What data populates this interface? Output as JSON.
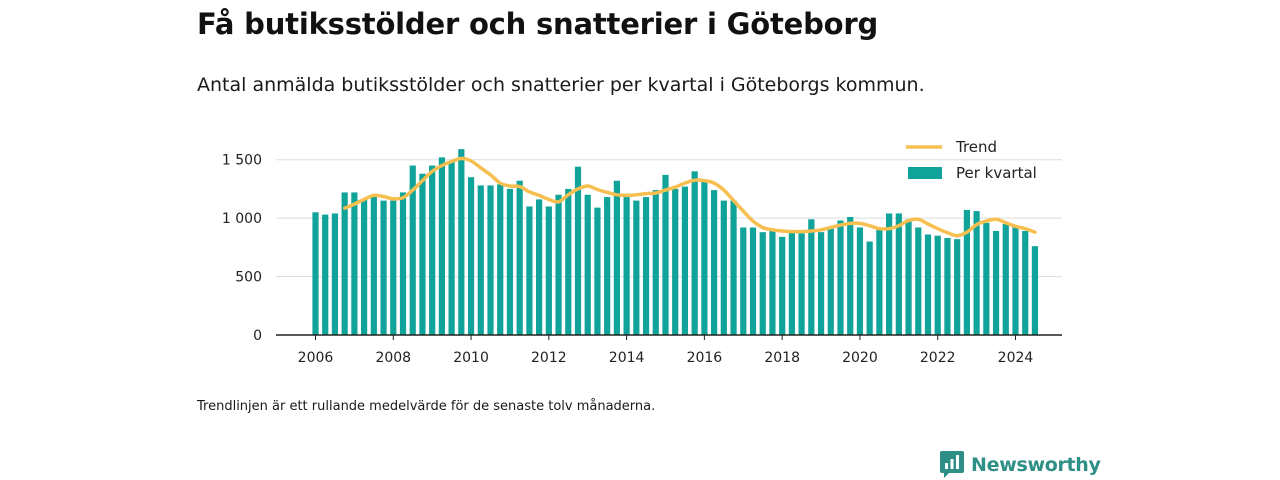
{
  "title": "Få butiksstölder och snatterier i Göteborg",
  "subtitle": "Antal anmälda butiksstölder och snatterier per kvartal i Göteborgs kommun.",
  "note": "Trendlinjen är ett rullande medelvärde för de senaste tolv månaderna.",
  "brand": {
    "name": "Newsworthy",
    "icon": "newsworthy-logo-icon"
  },
  "colors": {
    "bar": "#0fa39a",
    "trend": "#f6bf4f",
    "grid": "#dddddd",
    "axis": "#222222"
  },
  "chart_data": {
    "type": "bar",
    "title": "Få butiksstölder och snatterier i Göteborg",
    "subtitle": "Antal anmälda butiksstölder och snatterier per kvartal i Göteborgs kommun.",
    "xlabel": "",
    "ylabel": "",
    "xlim": [
      2005.5,
      2025.25
    ],
    "ylim": [
      0,
      1600
    ],
    "yticks": [
      0,
      500,
      1000,
      1500
    ],
    "ytick_labels": [
      "0",
      "500",
      "1 000",
      "1 500"
    ],
    "xticks": [
      2006,
      2008,
      2010,
      2012,
      2014,
      2016,
      2018,
      2020,
      2022,
      2024
    ],
    "xtick_labels": [
      "2006",
      "2008",
      "2010",
      "2012",
      "2014",
      "2016",
      "2018",
      "2020",
      "2022",
      "2024"
    ],
    "grid": "horizontal",
    "legend_position": "top-right",
    "x_start": 2006,
    "x_step": 0.25,
    "series": [
      {
        "name": "Per kvartal",
        "type": "bar",
        "values": [
          1050,
          1030,
          1040,
          1220,
          1220,
          1160,
          1190,
          1150,
          1150,
          1220,
          1450,
          1380,
          1450,
          1520,
          1490,
          1590,
          1350,
          1280,
          1280,
          1290,
          1250,
          1320,
          1100,
          1160,
          1100,
          1200,
          1250,
          1440,
          1200,
          1090,
          1180,
          1320,
          1180,
          1150,
          1180,
          1240,
          1370,
          1250,
          1270,
          1400,
          1320,
          1240,
          1150,
          1150,
          920,
          920,
          880,
          910,
          840,
          880,
          870,
          990,
          880,
          910,
          980,
          1010,
          920,
          800,
          920,
          1040,
          1040,
          990,
          920,
          860,
          850,
          830,
          820,
          1070,
          1060,
          960,
          890,
          950,
          930,
          890,
          760
        ]
      },
      {
        "name": "Trend",
        "type": "line",
        "x": [
          2006.75,
          2007.0,
          2007.25,
          2007.5,
          2007.75,
          2008.0,
          2008.25,
          2008.5,
          2008.75,
          2009.0,
          2009.25,
          2009.5,
          2009.75,
          2010.0,
          2010.25,
          2010.5,
          2010.75,
          2011.0,
          2011.25,
          2011.5,
          2011.75,
          2012.0,
          2012.25,
          2012.5,
          2012.75,
          2013.0,
          2013.25,
          2013.5,
          2013.75,
          2014.0,
          2014.25,
          2014.5,
          2014.75,
          2015.0,
          2015.25,
          2015.5,
          2015.75,
          2016.0,
          2016.25,
          2016.5,
          2016.75,
          2017.0,
          2017.25,
          2017.5,
          2017.75,
          2018.0,
          2018.25,
          2018.5,
          2018.75,
          2019.0,
          2019.25,
          2019.5,
          2019.75,
          2020.0,
          2020.25,
          2020.5,
          2020.75,
          2021.0,
          2021.25,
          2021.5,
          2021.75,
          2022.0,
          2022.25,
          2022.5,
          2022.75,
          2023.0,
          2023.25,
          2023.5,
          2023.75,
          2024.0,
          2024.25,
          2024.5
        ],
        "values": [
          1085,
          1120,
          1160,
          1195,
          1185,
          1165,
          1175,
          1240,
          1320,
          1400,
          1450,
          1485,
          1510,
          1490,
          1430,
          1370,
          1300,
          1275,
          1270,
          1225,
          1195,
          1160,
          1140,
          1200,
          1250,
          1275,
          1245,
          1220,
          1200,
          1195,
          1200,
          1210,
          1215,
          1240,
          1265,
          1300,
          1325,
          1320,
          1300,
          1240,
          1150,
          1060,
          975,
          920,
          900,
          890,
          885,
          885,
          890,
          900,
          920,
          940,
          955,
          955,
          935,
          910,
          910,
          935,
          980,
          990,
          950,
          910,
          875,
          850,
          880,
          945,
          975,
          990,
          960,
          930,
          910,
          880
        ]
      }
    ]
  }
}
